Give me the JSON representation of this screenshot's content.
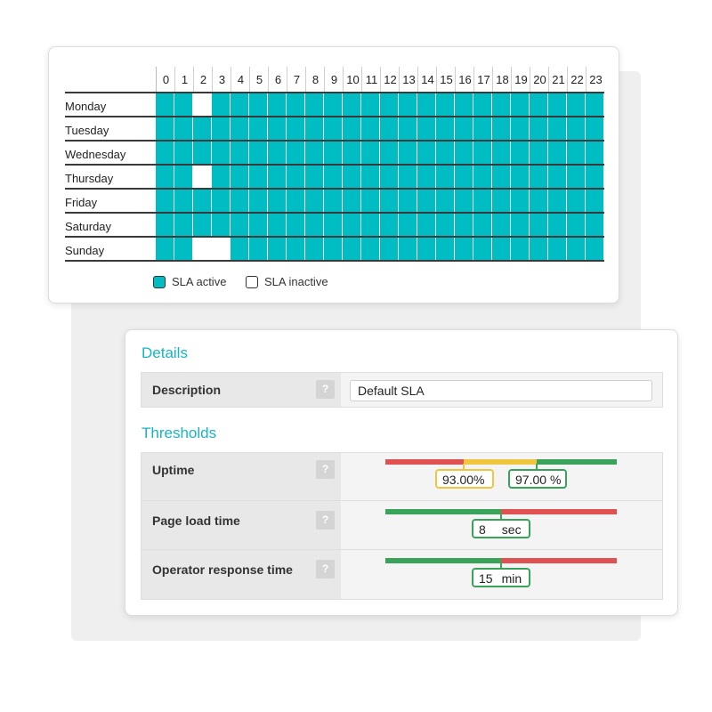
{
  "schedule": {
    "hours": [
      "0",
      "1",
      "2",
      "3",
      "4",
      "5",
      "6",
      "7",
      "8",
      "9",
      "10",
      "11",
      "12",
      "13",
      "14",
      "15",
      "16",
      "17",
      "18",
      "19",
      "20",
      "21",
      "22",
      "23"
    ],
    "days": [
      {
        "name": "Monday",
        "inactive_hours": [
          2
        ]
      },
      {
        "name": "Tuesday",
        "inactive_hours": []
      },
      {
        "name": "Wednesday",
        "inactive_hours": []
      },
      {
        "name": "Thursday",
        "inactive_hours": [
          2
        ]
      },
      {
        "name": "Friday",
        "inactive_hours": []
      },
      {
        "name": "Saturday",
        "inactive_hours": []
      },
      {
        "name": "Sunday",
        "inactive_hours": [
          2,
          3
        ]
      }
    ],
    "active_color": "#00bcc3",
    "legend": {
      "active": "SLA active",
      "inactive": "SLA inactive"
    }
  },
  "details": {
    "title": "Details",
    "description_label": "Description",
    "description_value": "Default SLA",
    "help_glyph": "?"
  },
  "thresholds": {
    "title": "Thresholds",
    "uptime": {
      "label": "Uptime",
      "low": "93.00",
      "high": "97.00",
      "unit": "%"
    },
    "page_load": {
      "label": "Page load time",
      "value": "8",
      "unit": "sec"
    },
    "operator_response": {
      "label": "Operator response time",
      "value": "15",
      "unit": "min"
    },
    "colors": {
      "good": "#3aa35a",
      "warn": "#f0c63f",
      "bad": "#e05252"
    }
  }
}
